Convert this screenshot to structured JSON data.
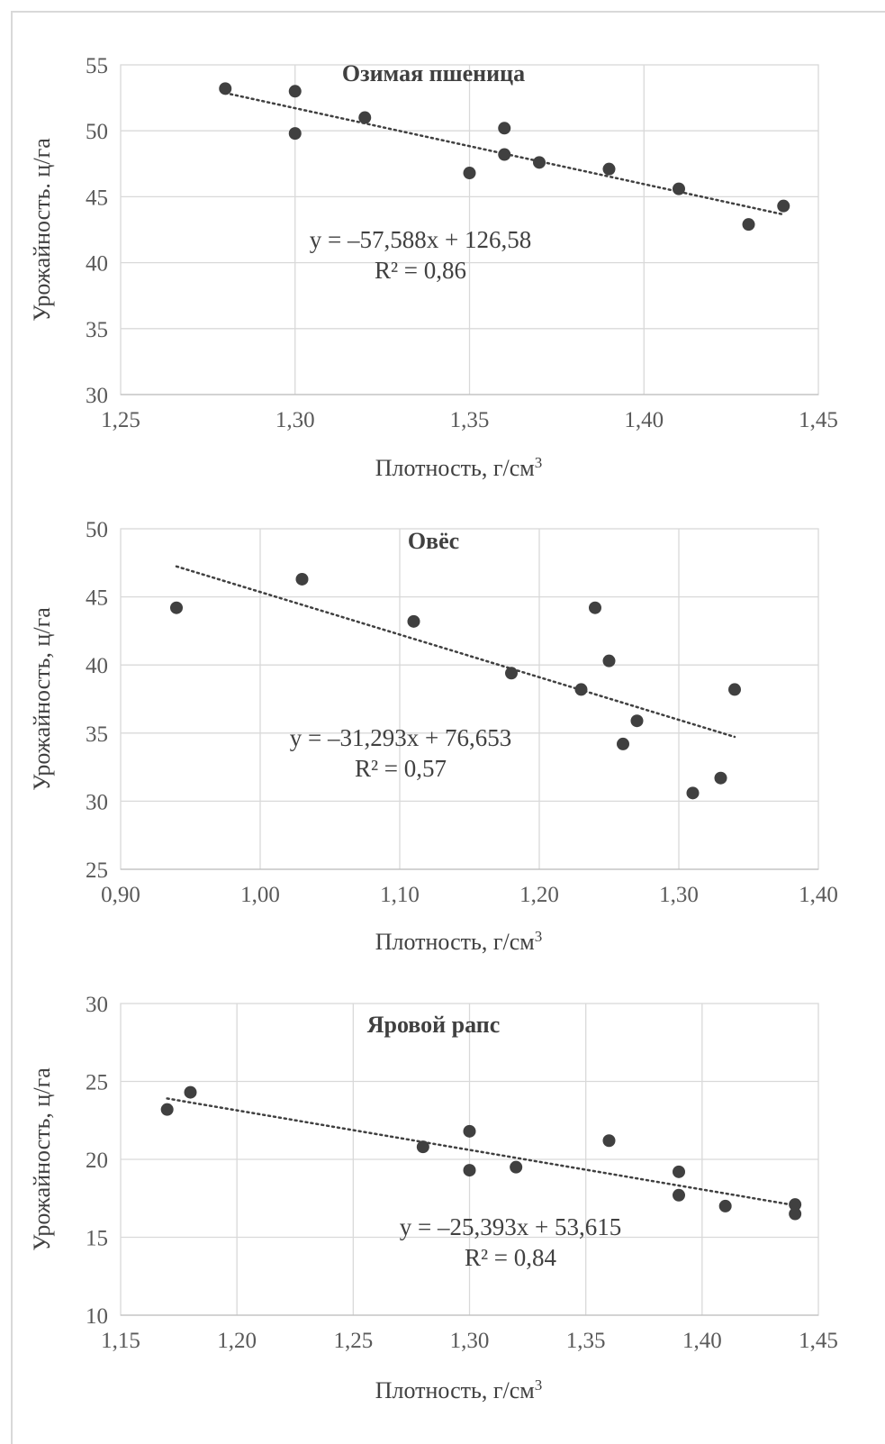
{
  "chart_data": [
    {
      "type": "scatter",
      "title": "Озимая пшеница",
      "xlabel": "Плотность, г/см³",
      "ylabel": "Урожайность. ц/га",
      "xlim": [
        1.25,
        1.45
      ],
      "ylim": [
        30,
        55
      ],
      "x_ticks": [
        "1,25",
        "1,30",
        "1,35",
        "1,40",
        "1,45"
      ],
      "y_ticks": [
        "30",
        "35",
        "40",
        "45",
        "50",
        "55"
      ],
      "grid": true,
      "series": [
        {
          "points": [
            [
              1.28,
              53.2
            ],
            [
              1.3,
              53.0
            ],
            [
              1.3,
              49.8
            ],
            [
              1.32,
              51.0
            ],
            [
              1.35,
              46.8
            ],
            [
              1.36,
              50.2
            ],
            [
              1.36,
              48.2
            ],
            [
              1.37,
              47.6
            ],
            [
              1.39,
              47.1
            ],
            [
              1.41,
              45.6
            ],
            [
              1.43,
              42.9
            ],
            [
              1.44,
              44.3
            ]
          ]
        }
      ],
      "trendline": {
        "slope": -57.588,
        "intercept": 126.58,
        "x_range": [
          1.28,
          1.44
        ]
      },
      "equation": "y = –57,588x + 126,58",
      "r2": "R² = 0,86"
    },
    {
      "type": "scatter",
      "title": "Овёс",
      "xlabel": "Плотность, г/см³",
      "ylabel": "Урожайность, ц/га",
      "xlim": [
        0.9,
        1.4
      ],
      "ylim": [
        25,
        50
      ],
      "x_ticks": [
        "0,90",
        "1,00",
        "1,10",
        "1,20",
        "1,30",
        "1,40"
      ],
      "y_ticks": [
        "25",
        "30",
        "35",
        "40",
        "45",
        "50"
      ],
      "grid": true,
      "series": [
        {
          "points": [
            [
              0.94,
              44.2
            ],
            [
              1.03,
              46.3
            ],
            [
              1.11,
              43.2
            ],
            [
              1.18,
              39.4
            ],
            [
              1.23,
              38.2
            ],
            [
              1.24,
              44.2
            ],
            [
              1.25,
              40.3
            ],
            [
              1.26,
              34.2
            ],
            [
              1.27,
              35.9
            ],
            [
              1.31,
              30.6
            ],
            [
              1.33,
              31.7
            ],
            [
              1.34,
              38.2
            ]
          ]
        }
      ],
      "trendline": {
        "slope": -31.293,
        "intercept": 76.653,
        "x_range": [
          0.94,
          1.34
        ]
      },
      "equation": "y = –31,293x + 76,653",
      "r2": "R² = 0,57"
    },
    {
      "type": "scatter",
      "title": "Яровой рапс",
      "xlabel": "Плотность, г/см³",
      "ylabel": "Урожайность, ц/га",
      "xlim": [
        1.15,
        1.45
      ],
      "ylim": [
        10,
        30
      ],
      "x_ticks": [
        "1,15",
        "1,20",
        "1,25",
        "1,30",
        "1,35",
        "1,40",
        "1,45"
      ],
      "y_ticks": [
        "10",
        "15",
        "20",
        "25",
        "30"
      ],
      "grid": true,
      "series": [
        {
          "points": [
            [
              1.17,
              23.2
            ],
            [
              1.18,
              24.3
            ],
            [
              1.28,
              20.8
            ],
            [
              1.3,
              21.8
            ],
            [
              1.3,
              19.3
            ],
            [
              1.32,
              19.5
            ],
            [
              1.36,
              21.2
            ],
            [
              1.39,
              19.2
            ],
            [
              1.39,
              17.7
            ],
            [
              1.41,
              17.0
            ],
            [
              1.44,
              17.1
            ],
            [
              1.44,
              16.5
            ]
          ]
        }
      ],
      "trendline": {
        "slope": -25.393,
        "intercept": 53.615,
        "x_range": [
          1.17,
          1.44
        ]
      },
      "equation": "y = –25,393x + 53,615",
      "r2": "R² = 0,84"
    }
  ]
}
